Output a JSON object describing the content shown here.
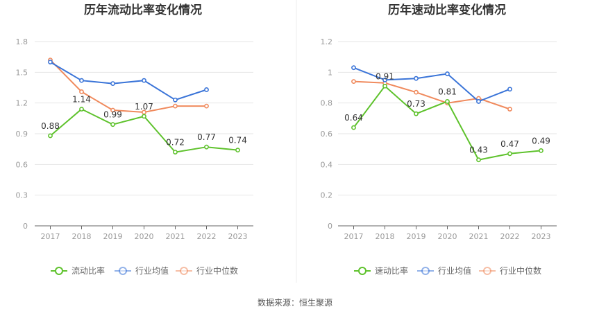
{
  "source_label": "数据来源：恒生聚源",
  "chart_data": [
    {
      "type": "line",
      "title": "历年流动比率变化情况",
      "categories": [
        "2017",
        "2018",
        "2019",
        "2020",
        "2021",
        "2022",
        "2023"
      ],
      "ylim": [
        0,
        1.8
      ],
      "yticks": [
        "0",
        "0.3",
        "0.6",
        "0.9",
        "1.2",
        "1.5",
        "1.8"
      ],
      "yticks_values": [
        0,
        0.3,
        0.6,
        0.9,
        1.2,
        1.5,
        1.8
      ],
      "series": [
        {
          "name": "流动比率",
          "color": "#5ec22c",
          "values": [
            0.88,
            1.14,
            0.99,
            1.07,
            0.72,
            0.77,
            0.74
          ],
          "labels": [
            "0.88",
            "1.14",
            "0.99",
            "1.07",
            "0.72",
            "0.77",
            "0.74"
          ]
        },
        {
          "name": "行业均值",
          "color": "#3a74d8",
          "values": [
            1.6,
            1.42,
            1.39,
            1.42,
            1.23,
            1.33,
            null
          ]
        },
        {
          "name": "行业中位数",
          "color": "#f08a5d",
          "values": [
            1.62,
            1.31,
            1.13,
            1.11,
            1.17,
            1.17,
            null
          ]
        }
      ]
    },
    {
      "type": "line",
      "title": "历年速动比率变化情况",
      "categories": [
        "2017",
        "2018",
        "2019",
        "2020",
        "2021",
        "2022",
        "2023"
      ],
      "ylim": [
        0,
        1.2
      ],
      "yticks": [
        "0",
        "0.2",
        "0.4",
        "0.6",
        "0.8",
        "1",
        "1.2"
      ],
      "yticks_values": [
        0,
        0.2,
        0.4,
        0.6,
        0.8,
        1.0,
        1.2
      ],
      "series": [
        {
          "name": "速动比率",
          "color": "#5ec22c",
          "values": [
            0.64,
            0.91,
            0.73,
            0.81,
            0.43,
            0.47,
            0.49
          ],
          "labels": [
            "0.64",
            "0.91",
            "0.73",
            "0.81",
            "0.43",
            "0.47",
            "0.49"
          ]
        },
        {
          "name": "行业均值",
          "color": "#3a74d8",
          "values": [
            1.03,
            0.95,
            0.96,
            0.99,
            0.81,
            0.89,
            null
          ]
        },
        {
          "name": "行业中位数",
          "color": "#f08a5d",
          "values": [
            0.94,
            0.93,
            0.87,
            0.8,
            0.83,
            0.76,
            null
          ]
        }
      ]
    }
  ]
}
